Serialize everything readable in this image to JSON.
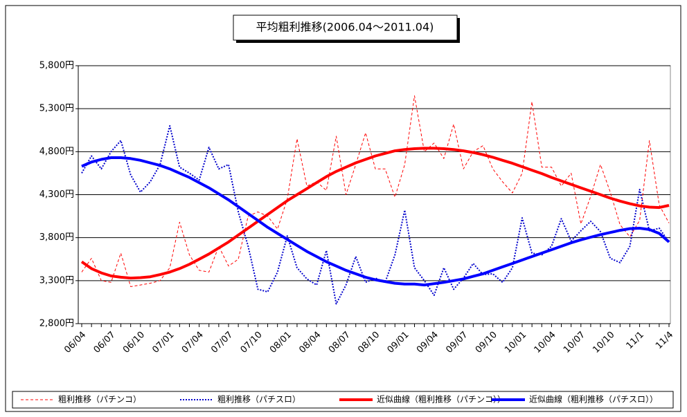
{
  "chart_data": {
    "type": "line",
    "title": "平均粗利推移(2006.04～2011.04)",
    "categories": [
      "06/04",
      null,
      null,
      "06/07",
      null,
      null,
      "06/10",
      null,
      null,
      "07/01",
      null,
      null,
      "07/04",
      null,
      null,
      "07/07",
      null,
      null,
      "07/10",
      null,
      null,
      "08/01",
      null,
      null,
      "08/04",
      null,
      null,
      "08/07",
      null,
      null,
      "08/10",
      null,
      null,
      "09/01",
      null,
      null,
      "09/04",
      null,
      null,
      "09/07",
      null,
      null,
      "09/10",
      null,
      null,
      "10/01",
      null,
      null,
      "10/04",
      null,
      null,
      "10/07",
      null,
      null,
      "10/10",
      null,
      null,
      "11/1",
      null,
      null,
      "11/4"
    ],
    "ylim": [
      2800,
      5800
    ],
    "yticks": [
      {
        "value": 2800,
        "label": "2,800円"
      },
      {
        "value": 3300,
        "label": "3,300円"
      },
      {
        "value": 3800,
        "label": "3,800円"
      },
      {
        "value": 4300,
        "label": "4,300円"
      },
      {
        "value": 4800,
        "label": "4,800円"
      },
      {
        "value": 5300,
        "label": "5,300円"
      },
      {
        "value": 5800,
        "label": "5,800円"
      }
    ],
    "grid": true,
    "legend": "bottom",
    "series": [
      {
        "name": "粗利推移（パチンコ）",
        "color": "#ff0000",
        "dash": "dashed",
        "width": 1,
        "values": [
          3400,
          3560,
          3300,
          3280,
          3620,
          3230,
          3250,
          3270,
          3300,
          3450,
          3980,
          3600,
          3420,
          3400,
          3700,
          3470,
          3550,
          4050,
          4100,
          4050,
          3900,
          4250,
          4950,
          4400,
          4450,
          4350,
          4980,
          4300,
          4650,
          5020,
          4600,
          4600,
          4270,
          4650,
          5450,
          4800,
          4900,
          4720,
          5120,
          4600,
          4800,
          4870,
          4600,
          4450,
          4320,
          4550,
          5380,
          4620,
          4620,
          4400,
          4550,
          3960,
          4280,
          4650,
          4330,
          3950,
          3810,
          4000,
          4930,
          4180,
          3970
        ]
      },
      {
        "name": "粗利推移（パチスロ）",
        "color": "#0000cc",
        "dash": "dotted",
        "width": 2,
        "values": [
          4550,
          4750,
          4600,
          4800,
          4930,
          4530,
          4330,
          4450,
          4650,
          5100,
          4620,
          4550,
          4470,
          4850,
          4600,
          4650,
          4100,
          3700,
          3200,
          3170,
          3400,
          3820,
          3450,
          3320,
          3250,
          3650,
          3030,
          3250,
          3580,
          3280,
          3330,
          3280,
          3600,
          4120,
          3450,
          3300,
          3130,
          3450,
          3200,
          3330,
          3500,
          3370,
          3380,
          3280,
          3450,
          4030,
          3620,
          3600,
          3700,
          4020,
          3760,
          3880,
          3990,
          3870,
          3560,
          3510,
          3700,
          4360,
          3880,
          3910,
          3750
        ]
      },
      {
        "name": "近似曲線（粗利推移（パチンコ））",
        "color": "#ff0000",
        "dash": "solid",
        "width": 4,
        "values": [
          3520,
          3440,
          3390,
          3355,
          3340,
          3330,
          3335,
          3345,
          3370,
          3400,
          3440,
          3490,
          3550,
          3610,
          3680,
          3750,
          3830,
          3910,
          3990,
          4070,
          4150,
          4230,
          4300,
          4370,
          4440,
          4510,
          4570,
          4620,
          4670,
          4710,
          4750,
          4780,
          4810,
          4825,
          4835,
          4840,
          4840,
          4835,
          4825,
          4810,
          4790,
          4765,
          4735,
          4700,
          4665,
          4625,
          4585,
          4545,
          4500,
          4460,
          4420,
          4380,
          4340,
          4300,
          4260,
          4225,
          4195,
          4170,
          4155,
          4150,
          4175
        ]
      },
      {
        "name": "近似曲線（粗利推移（パチスロ））",
        "color": "#0000ff",
        "dash": "solid",
        "width": 4,
        "values": [
          4630,
          4680,
          4710,
          4730,
          4730,
          4720,
          4700,
          4670,
          4640,
          4600,
          4550,
          4500,
          4440,
          4380,
          4310,
          4240,
          4160,
          4080,
          4000,
          3920,
          3850,
          3780,
          3710,
          3640,
          3580,
          3520,
          3470,
          3420,
          3380,
          3340,
          3310,
          3290,
          3270,
          3260,
          3260,
          3250,
          3265,
          3280,
          3300,
          3320,
          3350,
          3380,
          3420,
          3460,
          3500,
          3540,
          3580,
          3620,
          3660,
          3700,
          3740,
          3775,
          3805,
          3835,
          3860,
          3885,
          3905,
          3910,
          3895,
          3850,
          3750
        ]
      }
    ]
  }
}
